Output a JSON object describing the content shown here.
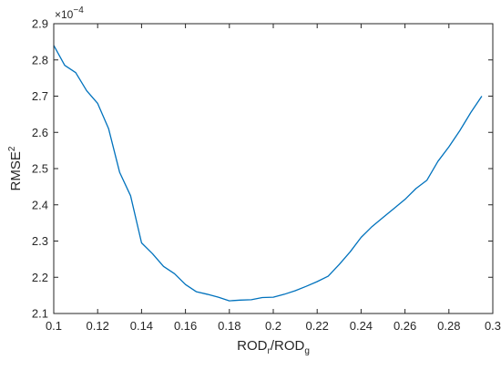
{
  "chart_data": {
    "type": "line",
    "xlabel": {
      "base": "ROD",
      "sub1": "r",
      "sep": "/ROD",
      "sub2": "g"
    },
    "ylabel": {
      "base": "RMSE",
      "sup": "2"
    },
    "y_multiplier": {
      "base": "×10",
      "exp": "−4"
    },
    "xlim": [
      0.1,
      0.3
    ],
    "ylim": [
      2.1,
      2.9
    ],
    "xticks": [
      0.1,
      0.12,
      0.14,
      0.16,
      0.18,
      0.2,
      0.22,
      0.24,
      0.26,
      0.28,
      0.3
    ],
    "xtick_labels": [
      "0.1",
      "0.12",
      "0.14",
      "0.16",
      "0.18",
      "0.2",
      "0.22",
      "0.24",
      "0.26",
      "0.28",
      "0.3"
    ],
    "yticks": [
      2.1,
      2.2,
      2.3,
      2.4,
      2.5,
      2.6,
      2.7,
      2.8,
      2.9
    ],
    "ytick_labels": [
      "2.1",
      "2.2",
      "2.3",
      "2.4",
      "2.5",
      "2.6",
      "2.7",
      "2.8",
      "2.9"
    ],
    "grid": false,
    "legend": "none",
    "color": "#0072BD",
    "series": [
      {
        "x": [
          0.1,
          0.105,
          0.11,
          0.115,
          0.12,
          0.125,
          0.13,
          0.135,
          0.14,
          0.145,
          0.15,
          0.155,
          0.16,
          0.165,
          0.17,
          0.175,
          0.18,
          0.185,
          0.19,
          0.195,
          0.2,
          0.205,
          0.21,
          0.215,
          0.22,
          0.225,
          0.23,
          0.235,
          0.24,
          0.245,
          0.25,
          0.255,
          0.26,
          0.265,
          0.27,
          0.275,
          0.28,
          0.285,
          0.29,
          0.295
        ],
        "y": [
          2.84,
          2.785,
          2.765,
          2.715,
          2.68,
          2.61,
          2.49,
          2.425,
          2.295,
          2.265,
          2.23,
          2.21,
          2.18,
          2.16,
          2.153,
          2.145,
          2.135,
          2.137,
          2.138,
          2.144,
          2.145,
          2.153,
          2.163,
          2.175,
          2.188,
          2.203,
          2.235,
          2.27,
          2.31,
          2.34,
          2.365,
          2.39,
          2.415,
          2.445,
          2.468,
          2.52,
          2.56,
          2.605,
          2.655,
          2.7
        ]
      }
    ]
  }
}
